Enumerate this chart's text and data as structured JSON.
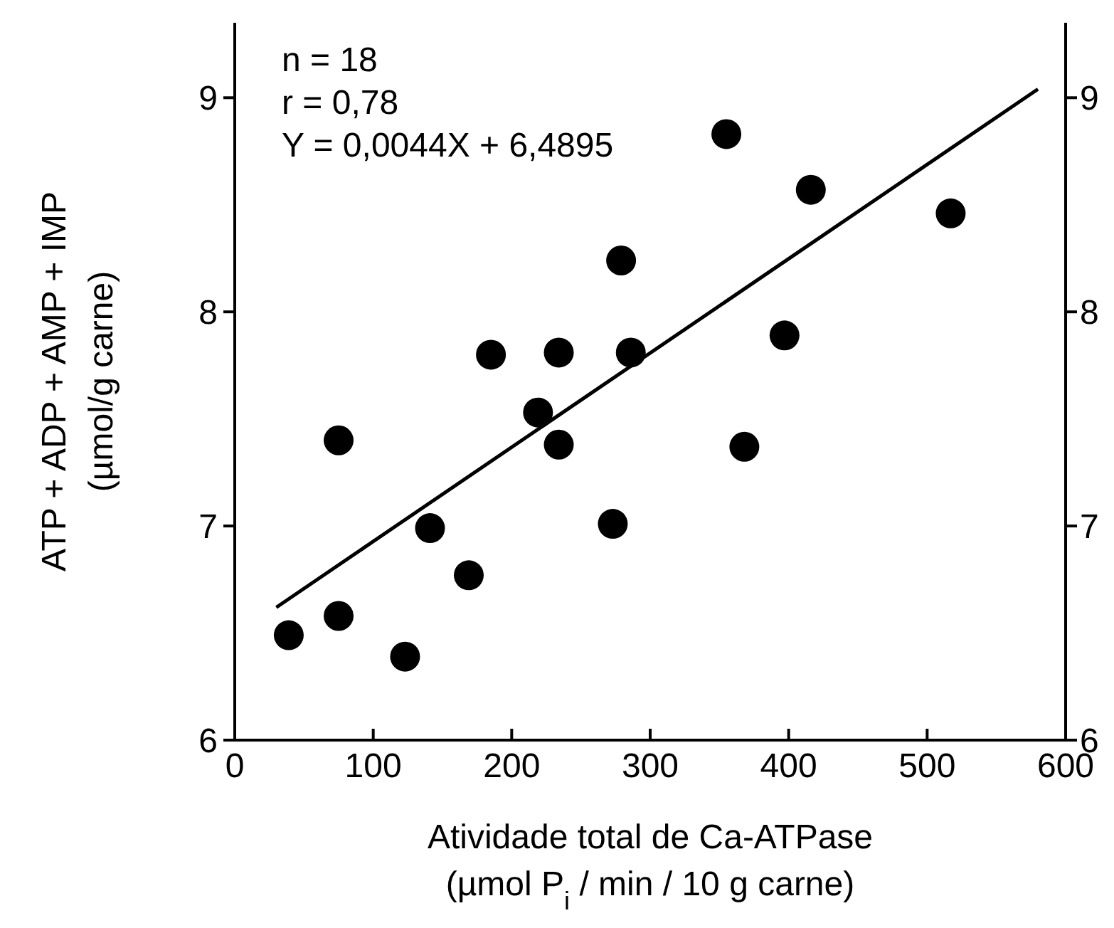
{
  "chart_data": {
    "type": "scatter",
    "xlabel": "Atividade total de Ca-ATPase\n(µmol P$_{i}$ / min / 10 g carne)",
    "ylabel": "ATP + ADP + AMP + IMP\n(µmol/g carne)",
    "annotations": [
      "n = 18",
      "r = 0,78",
      "Y = 0,0044X + 6,4895"
    ],
    "xlim": [
      0,
      600
    ],
    "xticks": [
      0,
      100,
      200,
      300,
      400,
      500,
      600
    ],
    "ylim": [
      6,
      9.35
    ],
    "yticks": [
      6,
      7,
      8,
      9
    ],
    "y2lim": [
      6,
      9.35
    ],
    "y2ticks": [
      6,
      7,
      8,
      9
    ],
    "marker": "circle",
    "grid": false,
    "series": [
      {
        "color": "#000000",
        "x": [
          39,
          75,
          75,
          123,
          141,
          169,
          185,
          219,
          234,
          234,
          273,
          279,
          286,
          355,
          368,
          397,
          416,
          517
        ],
        "values": [
          6.49,
          6.58,
          7.4,
          6.39,
          6.99,
          6.77,
          7.8,
          7.53,
          7.81,
          7.38,
          7.01,
          8.24,
          7.81,
          8.83,
          7.37,
          7.89,
          8.57,
          8.46
        ]
      },
      {
        "type": "line",
        "color": "#000000",
        "x": [
          30,
          580
        ],
        "values": [
          6.62,
          9.04
        ],
        "marker": "none",
        "line_style": "solid"
      }
    ]
  }
}
